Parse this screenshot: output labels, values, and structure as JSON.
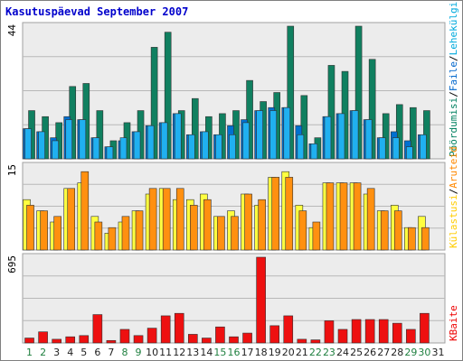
{
  "chart_data": {
    "type": "bar",
    "title": "Kasutuspäevad September 2007",
    "categories": [
      "1",
      "2",
      "3",
      "4",
      "5",
      "6",
      "7",
      "8",
      "9",
      "10",
      "11",
      "12",
      "13",
      "14",
      "15",
      "16",
      "17",
      "18",
      "19",
      "20",
      "21",
      "22",
      "23",
      "24",
      "25",
      "26",
      "27",
      "28",
      "29",
      "30",
      "31"
    ],
    "weekend_days": [
      "1",
      "2",
      "8",
      "9",
      "15",
      "16",
      "22",
      "23",
      "29",
      "30"
    ],
    "panels": [
      {
        "name": "top",
        "ymax_label": "44",
        "ymax": 44,
        "legend": [
          {
            "text": "Pöördumisi",
            "color": "#008060"
          },
          {
            "text": "/",
            "color": "#000000"
          },
          {
            "text": "Faile",
            "color": "#0066cc"
          },
          {
            "text": "/",
            "color": "#000000"
          },
          {
            "text": "Lehekülgi",
            "color": "#00aadd"
          }
        ],
        "series": [
          {
            "name": "Pöördumisi",
            "color": "#108060",
            "values": [
              16,
              14,
              12,
              24,
              25,
              16,
              6,
              12,
              16,
              37,
              42,
              16,
              20,
              14,
              15,
              16,
              26,
              19,
              22,
              44,
              21,
              7,
              31,
              29,
              44,
              33,
              15,
              18,
              17,
              16,
              null
            ]
          },
          {
            "name": "Faile",
            "color": "#0070d0",
            "values": [
              10,
              9,
              7,
              14,
              13,
              7,
              4,
              6,
              9,
              11,
              12,
              15,
              8,
              9,
              8,
              11,
              13,
              16,
              17,
              17,
              11,
              5,
              14,
              15,
              16,
              13,
              7,
              9,
              6,
              8,
              null
            ]
          },
          {
            "name": "Lehekülgi",
            "color": "#20b0f0",
            "values": [
              10,
              9,
              6,
              13,
              13,
              7,
              4,
              7,
              9,
              11,
              12,
              15,
              8,
              9,
              8,
              8,
              12,
              16,
              16,
              17,
              8,
              5,
              14,
              15,
              16,
              13,
              7,
              7,
              4,
              8,
              null
            ]
          }
        ]
      },
      {
        "name": "middle",
        "ymax_label": "15",
        "ymax": 15,
        "legend": [
          {
            "text": "Külastusi",
            "color": "#ffcc00"
          },
          {
            "text": "/",
            "color": "#000000"
          },
          {
            "text": "Aruteid",
            "color": "#ff8800"
          }
        ],
        "series": [
          {
            "name": "Külastusi",
            "color": "#ffff40",
            "values": [
              9,
              7,
              5,
              11,
              12,
              6,
              3,
              5,
              7,
              10,
              11,
              9,
              9,
              10,
              6,
              7,
              10,
              8,
              13,
              14,
              8,
              4,
              12,
              12,
              12,
              10,
              7,
              8,
              4,
              6,
              null
            ]
          },
          {
            "name": "Aruteid",
            "color": "#ff9010",
            "values": [
              8,
              7,
              6,
              11,
              14,
              5,
              4,
              6,
              7,
              11,
              11,
              11,
              8,
              9,
              6,
              6,
              10,
              9,
              13,
              13,
              7,
              5,
              12,
              12,
              12,
              11,
              7,
              7,
              4,
              4,
              null
            ]
          }
        ]
      },
      {
        "name": "bottom",
        "ymax_label": "695",
        "ymax": 695,
        "legend": [
          {
            "text": "KBaite",
            "color": "#ee0000"
          }
        ],
        "series": [
          {
            "name": "KBaite",
            "color": "#ee1010",
            "values": [
              40,
              90,
              30,
              50,
              60,
              230,
              20,
              110,
              60,
              120,
              220,
              240,
              70,
              40,
              130,
              50,
              80,
              695,
              140,
              220,
              30,
              25,
              180,
              110,
              190,
              190,
              190,
              160,
              110,
              240,
              null
            ]
          }
        ]
      }
    ]
  }
}
